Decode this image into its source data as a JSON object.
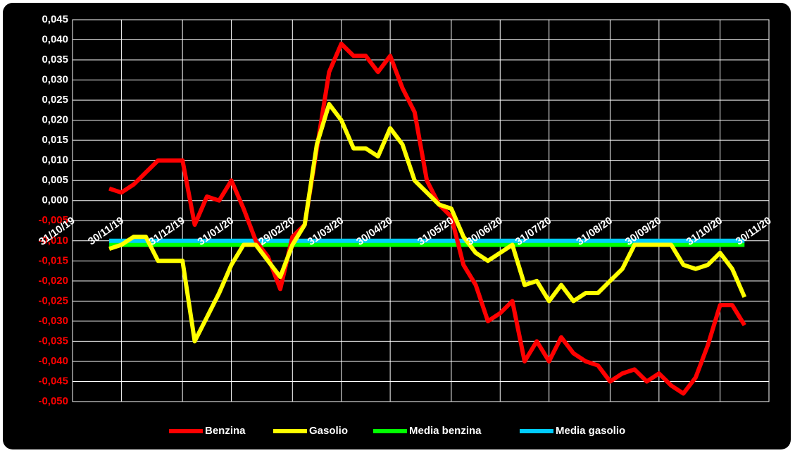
{
  "chart_data": {
    "type": "line",
    "categories": [
      "31/10/19",
      null,
      null,
      null,
      "30/11/19",
      null,
      null,
      null,
      null,
      "31/12/19",
      null,
      null,
      null,
      "31/01/20",
      null,
      null,
      null,
      null,
      "29/02/20",
      null,
      null,
      null,
      "31/03/20",
      null,
      null,
      null,
      "30/04/20",
      null,
      null,
      null,
      null,
      "31/05/20",
      null,
      null,
      null,
      "30/06/20",
      null,
      null,
      null,
      "31/07/20",
      null,
      null,
      null,
      null,
      "31/08/20",
      null,
      null,
      null,
      "30/09/20",
      null,
      null,
      null,
      null,
      "31/10/20",
      null,
      null,
      null,
      "30/11/20"
    ],
    "series": [
      {
        "name": "Benzina",
        "color": "#ff0000",
        "values": [
          null,
          null,
          null,
          0.003,
          0.002,
          0.004,
          0.007,
          0.01,
          0.01,
          0.01,
          -0.006,
          0.001,
          0.0,
          0.005,
          -0.002,
          -0.01,
          -0.014,
          -0.022,
          -0.009,
          -0.006,
          0.013,
          0.032,
          0.039,
          0.036,
          0.036,
          0.032,
          0.036,
          0.028,
          0.022,
          0.005,
          -0.001,
          -0.004,
          -0.016,
          -0.021,
          -0.03,
          -0.028,
          -0.025,
          -0.04,
          -0.035,
          -0.04,
          -0.034,
          -0.038,
          -0.04,
          -0.041,
          -0.045,
          -0.043,
          -0.042,
          -0.045,
          -0.043,
          -0.046,
          -0.048,
          -0.044,
          -0.036,
          -0.026,
          -0.026,
          -0.031,
          null,
          null
        ]
      },
      {
        "name": "Gasolio",
        "color": "#ffff00",
        "values": [
          null,
          null,
          null,
          -0.012,
          -0.011,
          -0.009,
          -0.009,
          -0.015,
          -0.015,
          -0.015,
          -0.035,
          -0.029,
          -0.023,
          -0.016,
          -0.011,
          -0.011,
          -0.015,
          -0.019,
          -0.011,
          -0.006,
          0.014,
          0.024,
          0.02,
          0.013,
          0.013,
          0.011,
          0.018,
          0.014,
          0.005,
          0.002,
          -0.001,
          -0.002,
          -0.009,
          -0.013,
          -0.015,
          -0.013,
          -0.011,
          -0.021,
          -0.02,
          -0.025,
          -0.021,
          -0.025,
          -0.023,
          -0.023,
          -0.02,
          -0.017,
          -0.011,
          -0.011,
          -0.011,
          -0.011,
          -0.016,
          -0.017,
          -0.016,
          -0.013,
          -0.017,
          -0.024,
          null,
          null
        ]
      },
      {
        "name": "Media benzina",
        "color": "#00ff00",
        "values": [
          null,
          null,
          null,
          -0.011,
          -0.011,
          -0.011,
          -0.011,
          -0.011,
          -0.011,
          -0.011,
          -0.011,
          -0.011,
          -0.011,
          -0.011,
          -0.011,
          -0.011,
          -0.011,
          -0.011,
          -0.011,
          -0.011,
          -0.011,
          -0.011,
          -0.011,
          -0.011,
          -0.011,
          -0.011,
          -0.011,
          -0.011,
          -0.011,
          -0.011,
          -0.011,
          -0.011,
          -0.011,
          -0.011,
          -0.011,
          -0.011,
          -0.011,
          -0.011,
          -0.011,
          -0.011,
          -0.011,
          -0.011,
          -0.011,
          -0.011,
          -0.011,
          -0.011,
          -0.011,
          -0.011,
          -0.011,
          -0.011,
          -0.011,
          -0.011,
          -0.011,
          -0.011,
          -0.011,
          -0.011,
          null,
          null
        ]
      },
      {
        "name": "Media gasolio",
        "color": "#00ccff",
        "values": [
          null,
          null,
          null,
          -0.01,
          -0.01,
          -0.01,
          -0.01,
          -0.01,
          -0.01,
          -0.01,
          -0.01,
          -0.01,
          -0.01,
          -0.01,
          -0.01,
          -0.01,
          -0.01,
          -0.01,
          -0.01,
          -0.01,
          -0.01,
          -0.01,
          -0.01,
          -0.01,
          -0.01,
          -0.01,
          -0.01,
          -0.01,
          -0.01,
          -0.01,
          -0.01,
          -0.01,
          -0.01,
          -0.01,
          -0.01,
          -0.01,
          -0.01,
          -0.01,
          -0.01,
          -0.01,
          -0.01,
          -0.01,
          -0.01,
          -0.01,
          -0.01,
          -0.01,
          -0.01,
          -0.01,
          -0.01,
          -0.01,
          -0.01,
          -0.01,
          -0.01,
          -0.01,
          -0.01,
          -0.01,
          null,
          null
        ]
      }
    ],
    "ylim": [
      -0.05,
      0.045
    ],
    "yticks": [
      {
        "value": 0.045,
        "label": "0,045"
      },
      {
        "value": 0.04,
        "label": "0,040"
      },
      {
        "value": 0.035,
        "label": "0,035"
      },
      {
        "value": 0.03,
        "label": "0,030"
      },
      {
        "value": 0.025,
        "label": "0,025"
      },
      {
        "value": 0.02,
        "label": "0,020"
      },
      {
        "value": 0.015,
        "label": "0,015"
      },
      {
        "value": 0.01,
        "label": "0,010"
      },
      {
        "value": 0.005,
        "label": "0,005"
      },
      {
        "value": 0,
        "label": "0,000"
      },
      {
        "value": -0.005,
        "label": "-0,005"
      },
      {
        "value": -0.01,
        "label": "-0,010"
      },
      {
        "value": -0.015,
        "label": "-0,015"
      },
      {
        "value": -0.02,
        "label": "-0,020"
      },
      {
        "value": -0.025,
        "label": "-0,025"
      },
      {
        "value": -0.03,
        "label": "-0,030"
      },
      {
        "value": -0.035,
        "label": "-0,035"
      },
      {
        "value": -0.04,
        "label": "-0,040"
      },
      {
        "value": -0.045,
        "label": "-0,045"
      },
      {
        "value": -0.05,
        "label": "-0,050"
      }
    ],
    "grid": true,
    "legend": "bottom",
    "background": "#000000",
    "tick_color": "#ffffff",
    "negative_tick_color": "#ff0000"
  }
}
